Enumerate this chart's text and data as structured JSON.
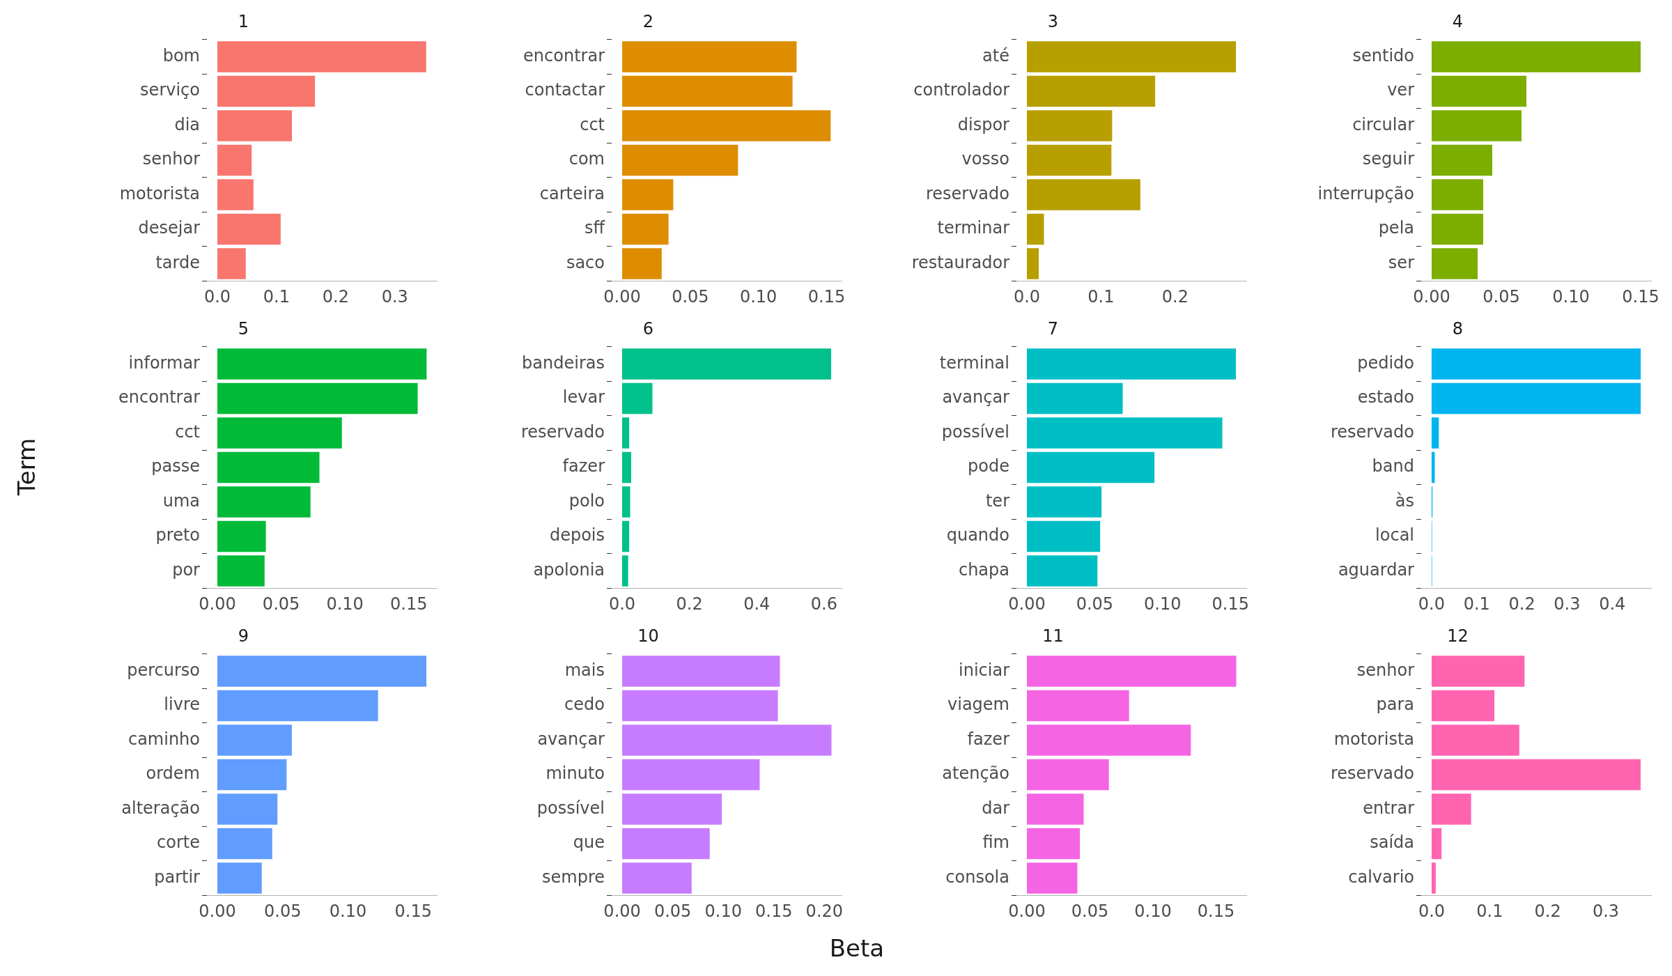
{
  "chart_data": [
    {
      "type": "bar",
      "orientation": "horizontal",
      "title": "1",
      "categories": [
        "bom",
        "serviço",
        "dia",
        "senhor",
        "motorista",
        "desejar",
        "tarde"
      ],
      "values": [
        0.353,
        0.165,
        0.126,
        0.058,
        0.061,
        0.107,
        0.048
      ],
      "color": "#f8766d",
      "xlim": [
        -0.0177,
        0.371
      ],
      "xticks": [
        {
          "value": 0,
          "label": "0.0"
        },
        {
          "value": 0.1,
          "label": "0.1"
        },
        {
          "value": 0.2,
          "label": "0.2"
        },
        {
          "value": 0.3,
          "label": "0.3"
        }
      ]
    },
    {
      "type": "bar",
      "orientation": "horizontal",
      "title": "2",
      "categories": [
        "encontrar",
        "contactar",
        "cct",
        "com",
        "carteira",
        "sff",
        "saco"
      ],
      "values": [
        0.128,
        0.125,
        0.153,
        0.085,
        0.0375,
        0.034,
        0.029
      ],
      "color": "#de8c00",
      "xlim": [
        -0.0077,
        0.161
      ],
      "xticks": [
        {
          "value": 0,
          "label": "0.00"
        },
        {
          "value": 0.05,
          "label": "0.05"
        },
        {
          "value": 0.1,
          "label": "0.10"
        },
        {
          "value": 0.15,
          "label": "0.15"
        }
      ]
    },
    {
      "type": "bar",
      "orientation": "horizontal",
      "title": "3",
      "categories": [
        "até",
        "controlador",
        "dispor",
        "vosso",
        "reservado",
        "terminar",
        "restaurador"
      ],
      "values": [
        0.282,
        0.173,
        0.115,
        0.114,
        0.153,
        0.023,
        0.016
      ],
      "color": "#b79f00",
      "xlim": [
        -0.0141,
        0.296
      ],
      "xticks": [
        {
          "value": 0,
          "label": "0.0"
        },
        {
          "value": 0.1,
          "label": "0.1"
        },
        {
          "value": 0.2,
          "label": "0.2"
        }
      ]
    },
    {
      "type": "bar",
      "orientation": "horizontal",
      "title": "4",
      "categories": [
        "sentido",
        "ver",
        "circular",
        "seguir",
        "interrupção",
        "pela",
        "ser"
      ],
      "values": [
        0.15,
        0.068,
        0.0645,
        0.0435,
        0.037,
        0.037,
        0.033
      ],
      "color": "#7cae00",
      "xlim": [
        -0.0075,
        0.1575
      ],
      "xticks": [
        {
          "value": 0,
          "label": "0.00"
        },
        {
          "value": 0.05,
          "label": "0.05"
        },
        {
          "value": 0.1,
          "label": "0.10"
        },
        {
          "value": 0.15,
          "label": "0.15"
        }
      ]
    },
    {
      "type": "bar",
      "orientation": "horizontal",
      "title": "5",
      "ylabel": "Term",
      "categories": [
        "informar",
        "encontrar",
        "cct",
        "passe",
        "uma",
        "preto",
        "por"
      ],
      "values": [
        0.164,
        0.157,
        0.0976,
        0.08,
        0.073,
        0.038,
        0.037
      ],
      "color": "#00ba38",
      "xlim": [
        -0.0082,
        0.172
      ],
      "xticks": [
        {
          "value": 0,
          "label": "0.00"
        },
        {
          "value": 0.05,
          "label": "0.05"
        },
        {
          "value": 0.1,
          "label": "0.10"
        },
        {
          "value": 0.15,
          "label": "0.15"
        }
      ]
    },
    {
      "type": "bar",
      "orientation": "horizontal",
      "title": "6",
      "categories": [
        "bandeiras",
        "levar",
        "reservado",
        "fazer",
        "polo",
        "depois",
        "apolonia"
      ],
      "values": [
        0.621,
        0.09,
        0.021,
        0.027,
        0.024,
        0.021,
        0.018
      ],
      "color": "#00c08b",
      "xlim": [
        -0.031,
        0.652
      ],
      "xticks": [
        {
          "value": 0,
          "label": "0.0"
        },
        {
          "value": 0.2,
          "label": "0.2"
        },
        {
          "value": 0.4,
          "label": "0.4"
        },
        {
          "value": 0.6,
          "label": "0.6"
        }
      ]
    },
    {
      "type": "bar",
      "orientation": "horizontal",
      "title": "7",
      "categories": [
        "terminal",
        "avançar",
        "possível",
        "pode",
        "ter",
        "quando",
        "chapa"
      ],
      "values": [
        0.154,
        0.0706,
        0.144,
        0.094,
        0.055,
        0.054,
        0.052
      ],
      "color": "#00bfc4",
      "xlim": [
        -0.0077,
        0.1617
      ],
      "xticks": [
        {
          "value": 0,
          "label": "0.00"
        },
        {
          "value": 0.05,
          "label": "0.05"
        },
        {
          "value": 0.1,
          "label": "0.10"
        },
        {
          "value": 0.15,
          "label": "0.15"
        }
      ]
    },
    {
      "type": "bar",
      "orientation": "horizontal",
      "title": "8",
      "categories": [
        "pedido",
        "estado",
        "reservado",
        "band",
        "às",
        "local",
        "aguardar"
      ],
      "values": [
        0.463,
        0.463,
        0.016,
        0.007,
        0.002,
        0.001,
        0.001
      ],
      "color": "#00b4f0",
      "xlim": [
        -0.023,
        0.486
      ],
      "xticks": [
        {
          "value": 0,
          "label": "0.0"
        },
        {
          "value": 0.1,
          "label": "0.1"
        },
        {
          "value": 0.2,
          "label": "0.2"
        },
        {
          "value": 0.3,
          "label": "0.3"
        },
        {
          "value": 0.4,
          "label": "0.4"
        }
      ]
    },
    {
      "type": "bar",
      "orientation": "horizontal",
      "title": "9",
      "categories": [
        "percurso",
        "livre",
        "caminho",
        "ordem",
        "alteração",
        "corte",
        "partir"
      ],
      "values": [
        0.16,
        0.123,
        0.057,
        0.053,
        0.046,
        0.042,
        0.034
      ],
      "color": "#619cff",
      "xlim": [
        -0.008,
        0.168
      ],
      "xticks": [
        {
          "value": 0,
          "label": "0.00"
        },
        {
          "value": 0.05,
          "label": "0.05"
        },
        {
          "value": 0.1,
          "label": "0.10"
        },
        {
          "value": 0.15,
          "label": "0.15"
        }
      ]
    },
    {
      "type": "bar",
      "orientation": "horizontal",
      "title": "10",
      "xlabel": "Beta",
      "categories": [
        "mais",
        "cedo",
        "avançar",
        "minuto",
        "possível",
        "que",
        "sempre"
      ],
      "values": [
        0.156,
        0.154,
        0.207,
        0.136,
        0.0985,
        0.0866,
        0.0687
      ],
      "color": "#c77cff",
      "xlim": [
        -0.0104,
        0.217
      ],
      "xticks": [
        {
          "value": 0,
          "label": "0.00"
        },
        {
          "value": 0.05,
          "label": "0.05"
        },
        {
          "value": 0.1,
          "label": "0.10"
        },
        {
          "value": 0.15,
          "label": "0.15"
        },
        {
          "value": 0.2,
          "label": "0.20"
        }
      ]
    },
    {
      "type": "bar",
      "orientation": "horizontal",
      "title": "11",
      "categories": [
        "iniciar",
        "viagem",
        "fazer",
        "atenção",
        "dar",
        "fim",
        "consola"
      ],
      "values": [
        0.166,
        0.081,
        0.13,
        0.065,
        0.045,
        0.042,
        0.04
      ],
      "color": "#f564e3",
      "xlim": [
        -0.0083,
        0.174
      ],
      "xticks": [
        {
          "value": 0,
          "label": "0.00"
        },
        {
          "value": 0.05,
          "label": "0.05"
        },
        {
          "value": 0.1,
          "label": "0.10"
        },
        {
          "value": 0.15,
          "label": "0.15"
        }
      ]
    },
    {
      "type": "bar",
      "orientation": "horizontal",
      "title": "12",
      "categories": [
        "senhor",
        "para",
        "motorista",
        "reservado",
        "entrar",
        "saída",
        "calvario"
      ],
      "values": [
        0.16,
        0.108,
        0.151,
        0.36,
        0.068,
        0.017,
        0.007
      ],
      "color": "#ff64b0",
      "xlim": [
        -0.018,
        0.378
      ],
      "xticks": [
        {
          "value": 0,
          "label": "0.0"
        },
        {
          "value": 0.1,
          "label": "0.1"
        },
        {
          "value": 0.2,
          "label": "0.2"
        },
        {
          "value": 0.3,
          "label": "0.3"
        }
      ]
    }
  ]
}
